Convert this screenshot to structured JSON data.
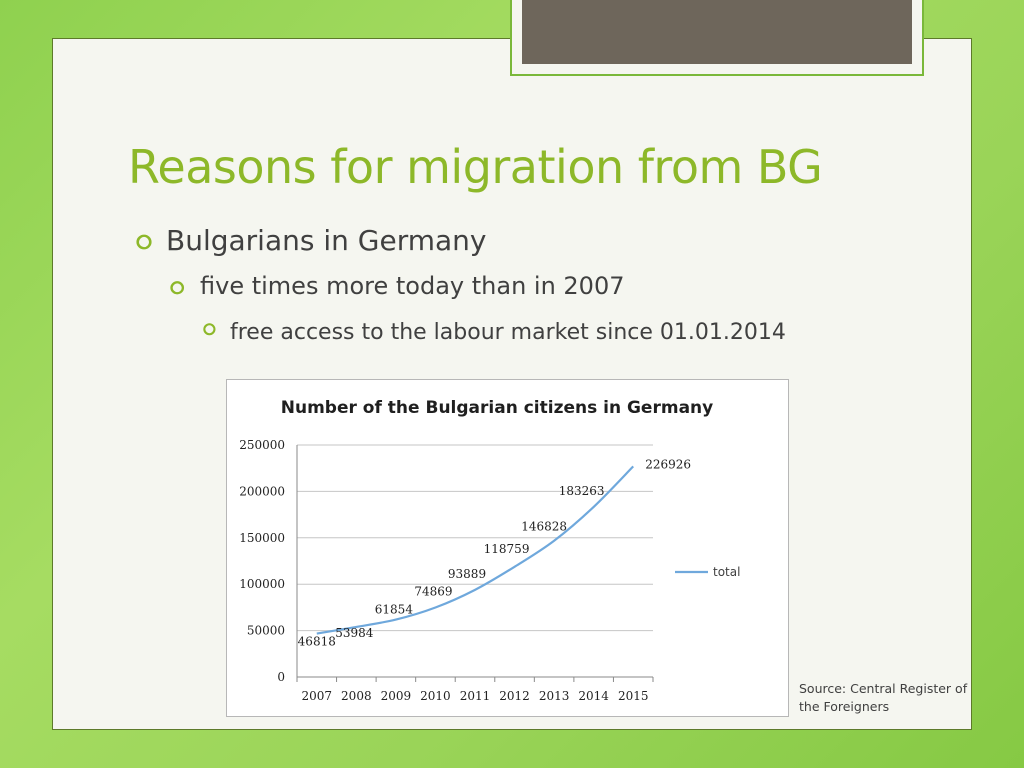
{
  "slide": {
    "title": "Reasons for migration from BG",
    "bullet1": "Bulgarians in Germany",
    "bullet2": "five times more today than in 2007",
    "bullet3": "free access to the labour market since 01.01.2014",
    "bullet_icon": "circle-bullet-icon",
    "source": "Source: Central Register of the Foreigners"
  },
  "colors": {
    "title": "#8db829",
    "line": "#6fa8dc",
    "background_green": "#8fd14f"
  },
  "chart_data": {
    "type": "line",
    "title": "Number of the Bulgarian citizens in Germany",
    "xlabel": "",
    "ylabel": "",
    "x": [
      "2007",
      "2008",
      "2009",
      "2010",
      "2011",
      "2012",
      "2013",
      "2014",
      "2015"
    ],
    "y_ticks": [
      "0",
      "50000",
      "100000",
      "150000",
      "200000",
      "250000"
    ],
    "ylim": [
      0,
      250000
    ],
    "grid": true,
    "legend_position": "right",
    "series": [
      {
        "name": "total",
        "values": [
          46818,
          53984,
          61854,
          74869,
          93889,
          118759,
          146828,
          183263,
          226926
        ],
        "labels": [
          "46818",
          "53984",
          "61854",
          "74869",
          "93889",
          "118759",
          "146828",
          "183263",
          "226926"
        ]
      }
    ]
  }
}
